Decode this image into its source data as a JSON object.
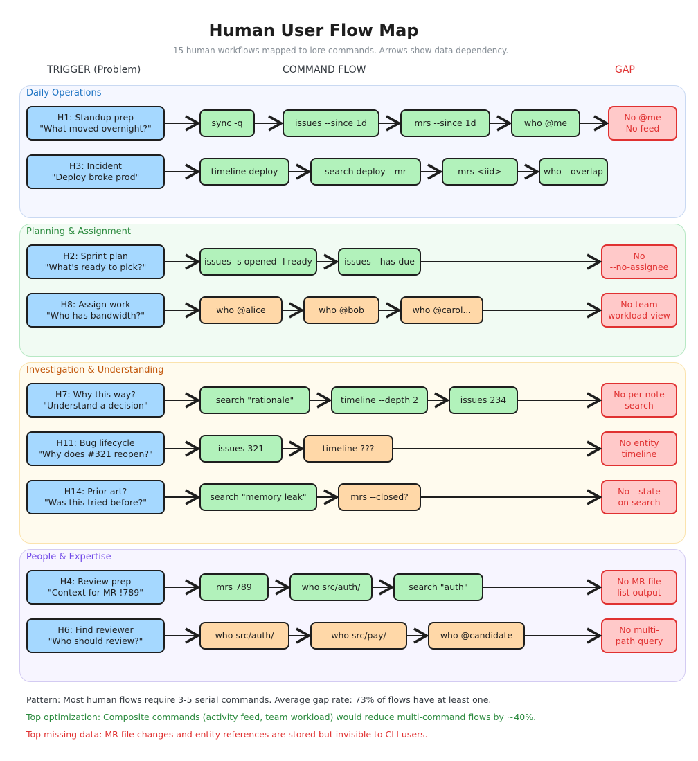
{
  "title": "Human User Flow Map",
  "subtitle": "15 human workflows mapped to lore commands. Arrows show data dependency.",
  "columns": {
    "trigger": "TRIGGER (Problem)",
    "flow": "COMMAND FLOW",
    "gap": "GAP"
  },
  "colors": {
    "trigger": "#a5d8ff",
    "command": "#b2f2bb",
    "partial_command": "#ffd8a8",
    "gap": "#ffc9c9",
    "gap_text": "#e03131"
  },
  "sections": [
    {
      "label": "Daily Operations",
      "color": "#1971c2",
      "rows": [
        {
          "trigger": "H1: Standup prep\n\"What moved overnight?\"",
          "commands": [
            {
              "text": "sync -q",
              "partial": false
            },
            {
              "text": "issues --since 1d",
              "partial": false
            },
            {
              "text": "mrs --since 1d",
              "partial": false
            },
            {
              "text": "who @me",
              "partial": false
            }
          ],
          "gap": "No @me\nNo feed"
        },
        {
          "trigger": "H3: Incident\n\"Deploy broke prod\"",
          "commands": [
            {
              "text": "timeline deploy",
              "partial": false
            },
            {
              "text": "search deploy --mr",
              "partial": false
            },
            {
              "text": "mrs <iid>",
              "partial": false
            },
            {
              "text": "who --overlap",
              "partial": false
            }
          ],
          "gap": null
        }
      ]
    },
    {
      "label": "Planning & Assignment",
      "color": "#2b8a3e",
      "rows": [
        {
          "trigger": "H2: Sprint plan\n\"What's ready to pick?\"",
          "commands": [
            {
              "text": "issues -s opened -l ready",
              "partial": false
            },
            {
              "text": "issues --has-due",
              "partial": false
            }
          ],
          "gap": "No\n--no-assignee"
        },
        {
          "trigger": "H8: Assign work\n\"Who has bandwidth?\"",
          "commands": [
            {
              "text": "who @alice",
              "partial": true
            },
            {
              "text": "who @bob",
              "partial": true
            },
            {
              "text": "who @carol...",
              "partial": true
            }
          ],
          "gap": "No team\nworkload view"
        }
      ]
    },
    {
      "label": "Investigation & Understanding",
      "color": "#c2570c",
      "rows": [
        {
          "trigger": "H7: Why this way?\n\"Understand a decision\"",
          "commands": [
            {
              "text": "search \"rationale\"",
              "partial": false
            },
            {
              "text": "timeline --depth 2",
              "partial": false
            },
            {
              "text": "issues 234",
              "partial": false
            }
          ],
          "gap": "No per-note\nsearch"
        },
        {
          "trigger": "H11: Bug lifecycle\n\"Why does #321 reopen?\"",
          "commands": [
            {
              "text": "issues 321",
              "partial": false
            },
            {
              "text": "timeline ???",
              "partial": true
            }
          ],
          "gap": "No entity\ntimeline"
        },
        {
          "trigger": "H14: Prior art?\n\"Was this tried before?\"",
          "commands": [
            {
              "text": "search \"memory leak\"",
              "partial": false
            },
            {
              "text": "mrs --closed?",
              "partial": true
            }
          ],
          "gap": "No --state\non search"
        }
      ]
    },
    {
      "label": "People & Expertise",
      "color": "#7048e8",
      "rows": [
        {
          "trigger": "H4: Review prep\n\"Context for MR !789\"",
          "commands": [
            {
              "text": "mrs 789",
              "partial": false
            },
            {
              "text": "who src/auth/",
              "partial": false
            },
            {
              "text": "search \"auth\"",
              "partial": false
            }
          ],
          "gap": "No MR file\nlist output"
        },
        {
          "trigger": "H6: Find reviewer\n\"Who should review?\"",
          "commands": [
            {
              "text": "who src/auth/",
              "partial": true
            },
            {
              "text": "who src/pay/",
              "partial": true
            },
            {
              "text": "who @candidate",
              "partial": true
            }
          ],
          "gap": "No multi-\npath query"
        }
      ]
    }
  ],
  "footer": {
    "pattern": "Pattern: Most human flows require 3-5 serial commands. Average gap rate: 73% of flows have at least one.",
    "optimization": "Top optimization: Composite commands (activity feed, team workload) would reduce multi-command flows by ~40%.",
    "missing": "Top missing data: MR file changes and entity references are stored but invisible to CLI users.",
    "pattern_color": "#343a40",
    "optimization_color": "#2b8a3e",
    "missing_color": "#e03131"
  }
}
